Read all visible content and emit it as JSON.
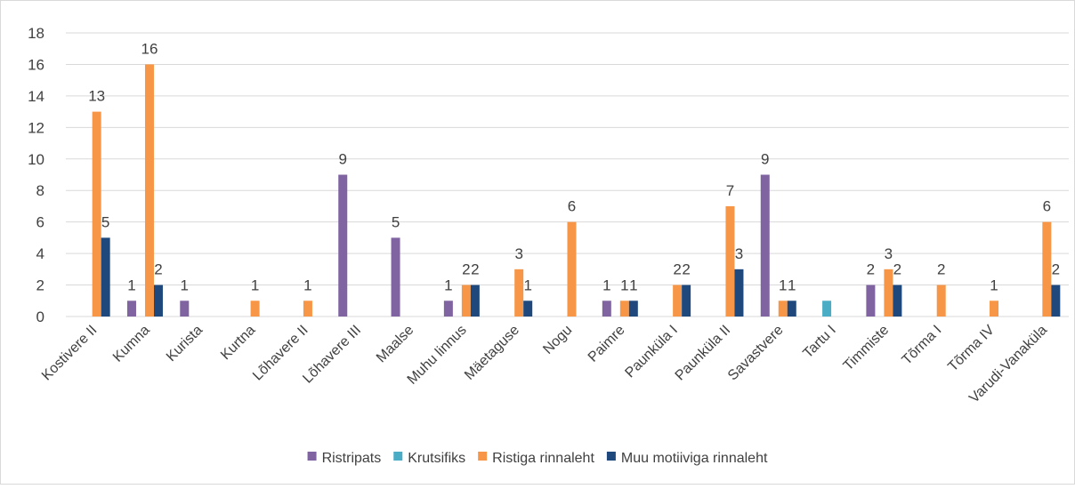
{
  "chart_data": {
    "type": "bar",
    "categories": [
      "Kostivere II",
      "Kumna",
      "Kurista",
      "Kurtna",
      "Lõhavere II",
      "Lõhavere III",
      "Maalse",
      "Muhu linnus",
      "Mäetaguse",
      "Nogu",
      "Paimre",
      "Paunküla I",
      "Paunküla II",
      "Savastvere",
      "Tartu I",
      "Timmiste",
      "Tõrma I",
      "Tõrma IV",
      "Varudi-Vanaküla"
    ],
    "series": [
      {
        "name": "Ristripats",
        "color": "#8064a2",
        "values": [
          null,
          1,
          1,
          null,
          null,
          9,
          5,
          1,
          null,
          null,
          1,
          null,
          null,
          9,
          null,
          2,
          null,
          null,
          null
        ]
      },
      {
        "name": "Krutsifiks",
        "color": "#4bacc6",
        "data_labels": false,
        "values": [
          null,
          null,
          null,
          null,
          null,
          null,
          null,
          null,
          null,
          null,
          null,
          null,
          null,
          null,
          1,
          null,
          null,
          null,
          null
        ]
      },
      {
        "name": "Ristiga rinnaleht",
        "color": "#f79646",
        "values": [
          13,
          16,
          null,
          1,
          1,
          null,
          null,
          2,
          3,
          6,
          1,
          2,
          7,
          1,
          null,
          3,
          2,
          1,
          6
        ]
      },
      {
        "name": "Muu motiiviga rinnaleht",
        "color": "#1f497d",
        "values": [
          5,
          2,
          null,
          null,
          null,
          null,
          null,
          2,
          1,
          null,
          1,
          2,
          3,
          1,
          null,
          2,
          null,
          null,
          2
        ]
      }
    ],
    "ylim": [
      0,
      18
    ],
    "yticks": [
      0,
      2,
      4,
      6,
      8,
      10,
      12,
      14,
      16,
      18
    ],
    "grid": true,
    "legend": "bottom"
  }
}
